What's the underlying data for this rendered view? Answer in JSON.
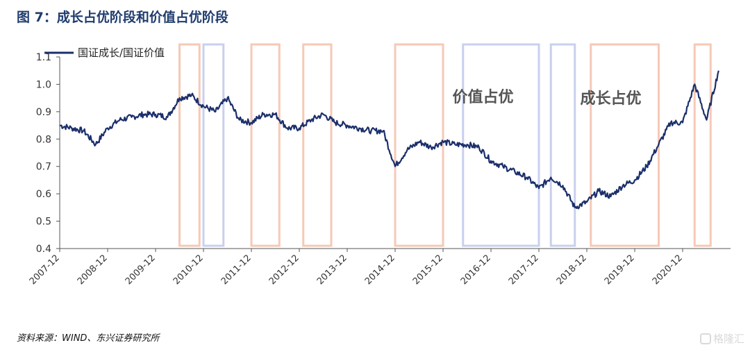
{
  "header": {
    "title": "图 7：成长占优阶段和价值占优阶段"
  },
  "footer": {
    "source": "资料来源：WIND、东兴证券研究所",
    "watermark": "格隆汇"
  },
  "colors": {
    "line": "#1b2f6b",
    "growth_box": "#f6c9b6",
    "value_box": "#c8d0ee",
    "axis": "#555555"
  },
  "chart_data": {
    "type": "line",
    "title": "",
    "xlabel": "",
    "ylabel": "",
    "ylim": [
      0.4,
      1.1
    ],
    "yticks": [
      "0.4",
      "0.5",
      "0.6",
      "0.7",
      "0.8",
      "0.9",
      "1.0",
      "1.1"
    ],
    "xticks": [
      "2007-12",
      "2008-12",
      "2009-12",
      "2010-12",
      "2011-12",
      "2012-12",
      "2013-12",
      "2014-12",
      "2015-12",
      "2016-12",
      "2017-12",
      "2018-12",
      "2019-12",
      "2020-12"
    ],
    "xlim": [
      "2007-12",
      "2021-12"
    ],
    "legend": "top-left",
    "grid": false,
    "series": [
      {
        "name": "国证成长/国证价值",
        "x": [
          "2007-12",
          "2008-03",
          "2008-06",
          "2008-09",
          "2008-12",
          "2009-03",
          "2009-06",
          "2009-09",
          "2009-12",
          "2010-03",
          "2010-06",
          "2010-09",
          "2010-12",
          "2011-03",
          "2011-06",
          "2011-09",
          "2011-12",
          "2012-03",
          "2012-06",
          "2012-09",
          "2012-12",
          "2013-03",
          "2013-06",
          "2013-09",
          "2013-12",
          "2014-03",
          "2014-06",
          "2014-09",
          "2014-12",
          "2015-03",
          "2015-06",
          "2015-09",
          "2015-12",
          "2016-03",
          "2016-06",
          "2016-09",
          "2016-12",
          "2017-03",
          "2017-06",
          "2017-09",
          "2017-12",
          "2018-03",
          "2018-06",
          "2018-09",
          "2018-12",
          "2019-03",
          "2019-06",
          "2019-09",
          "2019-12",
          "2020-03",
          "2020-06",
          "2020-09",
          "2020-12",
          "2021-03",
          "2021-06",
          "2021-09"
        ],
        "y": [
          0.85,
          0.84,
          0.83,
          0.78,
          0.84,
          0.87,
          0.88,
          0.89,
          0.89,
          0.88,
          0.95,
          0.96,
          0.92,
          0.9,
          0.95,
          0.87,
          0.86,
          0.89,
          0.89,
          0.84,
          0.84,
          0.87,
          0.89,
          0.86,
          0.85,
          0.84,
          0.83,
          0.83,
          0.7,
          0.76,
          0.79,
          0.77,
          0.79,
          0.78,
          0.78,
          0.77,
          0.72,
          0.7,
          0.68,
          0.66,
          0.62,
          0.66,
          0.63,
          0.55,
          0.57,
          0.61,
          0.59,
          0.63,
          0.65,
          0.7,
          0.78,
          0.86,
          0.86,
          1.0,
          0.87,
          1.05
        ]
      }
    ],
    "regions": [
      {
        "type": "growth",
        "start": "2010-06",
        "end": "2010-11"
      },
      {
        "type": "value",
        "start": "2010-12",
        "end": "2011-05"
      },
      {
        "type": "growth",
        "start": "2011-12",
        "end": "2012-07"
      },
      {
        "type": "growth",
        "start": "2013-01",
        "end": "2013-08"
      },
      {
        "type": "growth",
        "start": "2014-12",
        "end": "2015-12"
      },
      {
        "type": "value",
        "start": "2016-05",
        "end": "2017-12"
      },
      {
        "type": "value",
        "start": "2018-03",
        "end": "2018-09"
      },
      {
        "type": "growth",
        "start": "2019-01",
        "end": "2020-06"
      },
      {
        "type": "growth",
        "start": "2021-03",
        "end": "2021-07"
      }
    ],
    "annotations": [
      {
        "text": "价值占优",
        "x": "2016-10",
        "y": 0.935
      },
      {
        "text": "成长占优",
        "x": "2019-06",
        "y": 0.93
      }
    ]
  }
}
